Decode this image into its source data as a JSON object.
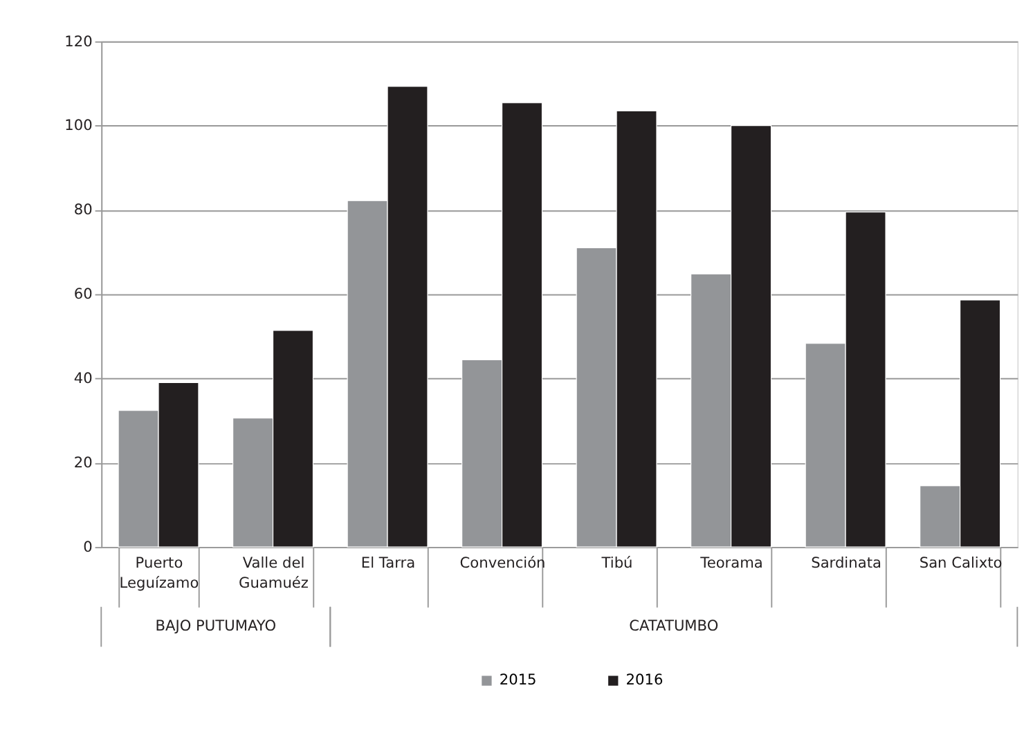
{
  "chart_data": {
    "type": "bar",
    "categories": [
      "Puerto\nLeguízamo",
      "Valle del\nGuamuéz",
      "El Tarra",
      "Convención",
      "Tibú",
      "Teorama",
      "Sardinata",
      "San Calixto"
    ],
    "series": [
      {
        "name": "2015",
        "color": "#939598",
        "values": [
          32.4,
          30.6,
          82.2,
          44.4,
          71.0,
          64.8,
          48.3,
          14.5
        ]
      },
      {
        "name": "2016",
        "color": "#231f20",
        "values": [
          39.0,
          51.4,
          109.3,
          105.4,
          103.5,
          100.0,
          79.5,
          58.6
        ]
      }
    ],
    "ylim": [
      0,
      120
    ],
    "yticks": [
      0,
      20,
      40,
      60,
      80,
      100,
      120
    ],
    "grid": "y",
    "legend": "bottom",
    "annotations": [
      "BAJO PUTUMAYO",
      "CATATUMBO"
    ]
  }
}
